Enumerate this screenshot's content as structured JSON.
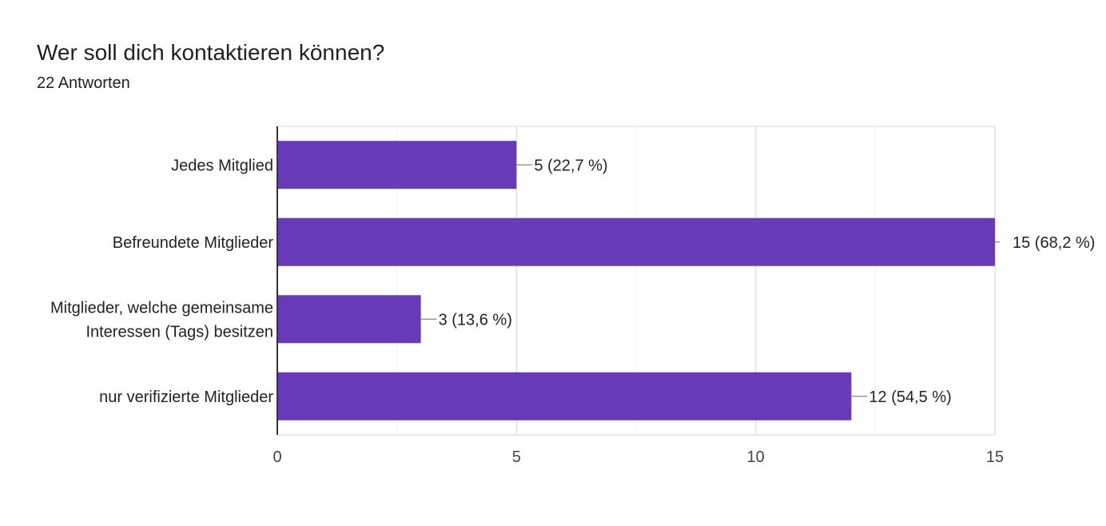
{
  "header": {
    "title": "Wer soll dich kontaktieren können?",
    "responses": "22 Antworten"
  },
  "chart_data": {
    "type": "bar",
    "orientation": "horizontal",
    "categories": [
      [
        "Jedes Mitglied"
      ],
      [
        "Befreundete Mitglieder"
      ],
      [
        "Mitglieder, welche gemeinsame",
        "Interessen (Tags) besitzen"
      ],
      [
        "nur verifizierte Mitglieder"
      ]
    ],
    "values": [
      5,
      15,
      3,
      12
    ],
    "data_labels": [
      "5 (22,7 %)",
      "15 (68,2 %)",
      "3 (13,6 %)",
      "12 (54,5 %)"
    ],
    "xlim": [
      0,
      15
    ],
    "xticks": [
      0,
      5,
      10,
      15
    ],
    "grid": true,
    "bar_color": "#673ab7"
  }
}
